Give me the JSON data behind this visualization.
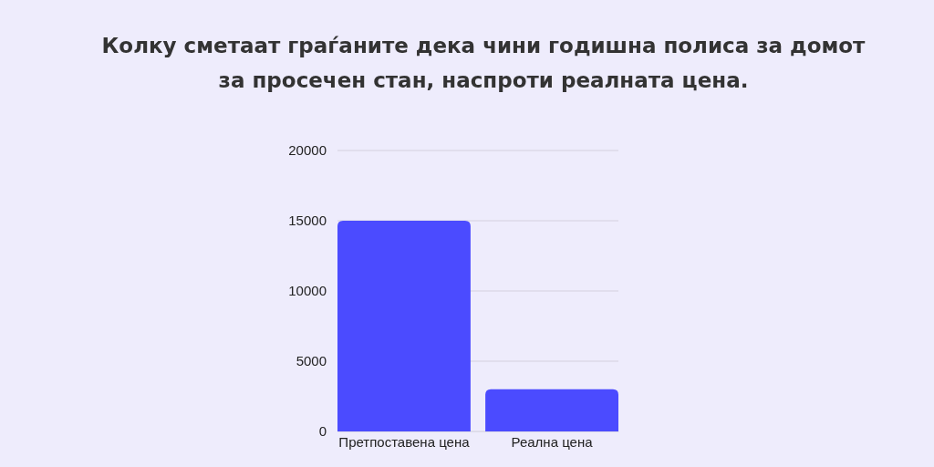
{
  "chart_data": {
    "type": "bar",
    "title": "Колку сметаат граѓаните дека чини годишна полиса за домот за просечен стан, наспроти реалната цена.",
    "categories": [
      "Претпоставена цена",
      "Реална цена"
    ],
    "values": [
      15000,
      3000
    ],
    "color": "#4b4bff",
    "ylim": [
      0,
      20000
    ],
    "yticks": [
      0,
      5000,
      10000,
      15000,
      20000
    ],
    "grid": "y"
  }
}
